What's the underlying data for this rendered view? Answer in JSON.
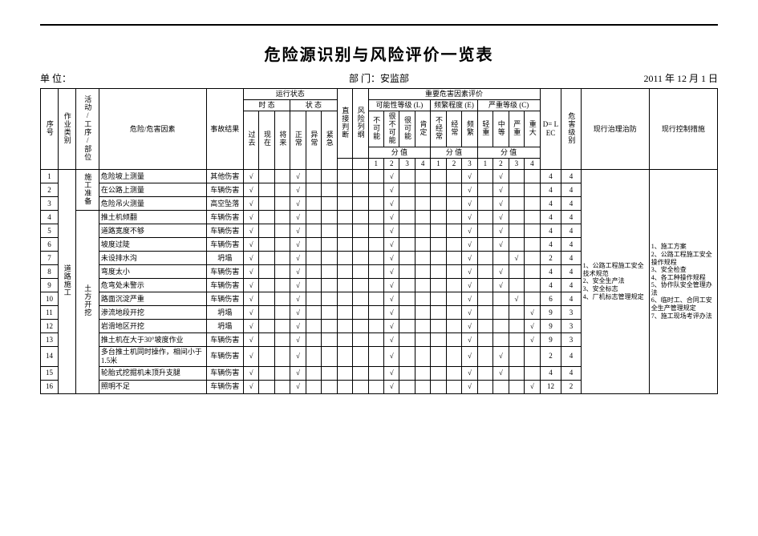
{
  "title": "危险源识别与风险评价一览表",
  "unit_label": "单 位：",
  "dept_label": "部 门：安监部",
  "date_label": "2011 年 12 月 1 日",
  "hdr": {
    "seq": "序号",
    "cat": "作业类别",
    "act": "活动/工序/部位",
    "haz": "危险/危害因素",
    "res": "事故结果",
    "run": "运行状态",
    "time": "时 态",
    "state": "状 态",
    "t_past": "过去",
    "t_now": "现在",
    "t_fut": "将来",
    "s_norm": "正常",
    "s_abn": "异常",
    "s_emg": "紧急",
    "direct": "直接判断",
    "flow": "风险列纲",
    "eval": "重要危害因素评价",
    "L": "可能性等级 (L)",
    "E": "频繁程度 (E)",
    "C": "严重等级 (C)",
    "L1": "不可能",
    "L2": "很不可能",
    "L3": "很可能",
    "L4": "肯定",
    "E1": "不经常",
    "E2": "经常",
    "E3": "频繁",
    "C1": "轻重",
    "C2": "中等",
    "C3": "严重",
    "C4": "重大",
    "score": "分 值",
    "D": "D= LEC",
    "level": "危害级别",
    "admin": "现行治理治防",
    "ctrl": "现行控制措施"
  },
  "cat": "道路施工",
  "act1": "施工准备",
  "act2": "土方开挖",
  "admin_text": "1、公路工程施工安全技术规范\n2、安全生产法\n3、安全标志\n4、厂机标志管理规定",
  "ctrl_text": "1、施工方案\n2、公路工程施工安全操作规程\n3、安全检查\n4、各工种操作规程\n5、协作队安全管理办法\n6、临时工、合同工安全生产管理规定\n7、施工现场考评办法",
  "rows": [
    {
      "seq": "1",
      "haz": "危险坡上测量",
      "res": "其他伤害",
      "t": [
        "√",
        "",
        ""
      ],
      "s": [
        "√",
        "",
        ""
      ],
      "d": "",
      "f": "",
      "L": [
        "",
        "√",
        "",
        ""
      ],
      "E": [
        "",
        "",
        "√"
      ],
      "C": [
        "",
        "√",
        "",
        ""
      ],
      "D": "4",
      "lvl": "4"
    },
    {
      "seq": "2",
      "haz": "在公路上测量",
      "res": "车辆伤害",
      "t": [
        "√",
        "",
        ""
      ],
      "s": [
        "√",
        "",
        ""
      ],
      "d": "",
      "f": "",
      "L": [
        "",
        "√",
        "",
        ""
      ],
      "E": [
        "",
        "",
        "√"
      ],
      "C": [
        "",
        "√",
        "",
        ""
      ],
      "D": "4",
      "lvl": "4"
    },
    {
      "seq": "3",
      "haz": "危险吊火测量",
      "res": "高空坠落",
      "t": [
        "√",
        "",
        ""
      ],
      "s": [
        "√",
        "",
        ""
      ],
      "d": "",
      "f": "",
      "L": [
        "",
        "√",
        "",
        ""
      ],
      "E": [
        "",
        "",
        "√"
      ],
      "C": [
        "",
        "√",
        "",
        ""
      ],
      "D": "4",
      "lvl": "4"
    },
    {
      "seq": "4",
      "haz": "推土机倾翻",
      "res": "车辆伤害",
      "t": [
        "√",
        "",
        ""
      ],
      "s": [
        "√",
        "",
        ""
      ],
      "d": "",
      "f": "",
      "L": [
        "",
        "√",
        "",
        ""
      ],
      "E": [
        "",
        "",
        "√"
      ],
      "C": [
        "",
        "√",
        "",
        ""
      ],
      "D": "4",
      "lvl": "4"
    },
    {
      "seq": "5",
      "haz": "道路宽度不够",
      "res": "车辆伤害",
      "t": [
        "√",
        "",
        ""
      ],
      "s": [
        "√",
        "",
        ""
      ],
      "d": "",
      "f": "",
      "L": [
        "",
        "√",
        "",
        ""
      ],
      "E": [
        "",
        "",
        "√"
      ],
      "C": [
        "",
        "√",
        "",
        ""
      ],
      "D": "4",
      "lvl": "4"
    },
    {
      "seq": "6",
      "haz": "坡度过陡",
      "res": "车辆伤害",
      "t": [
        "√",
        "",
        ""
      ],
      "s": [
        "√",
        "",
        ""
      ],
      "d": "",
      "f": "",
      "L": [
        "",
        "√",
        "",
        ""
      ],
      "E": [
        "",
        "",
        "√"
      ],
      "C": [
        "",
        "√",
        "",
        ""
      ],
      "D": "4",
      "lvl": "4"
    },
    {
      "seq": "7",
      "haz": "未设排水沟",
      "res": "坍塌",
      "t": [
        "√",
        "",
        ""
      ],
      "s": [
        "√",
        "",
        ""
      ],
      "d": "",
      "f": "",
      "L": [
        "",
        "√",
        "",
        ""
      ],
      "E": [
        "",
        "",
        "√"
      ],
      "C": [
        "",
        "",
        "√",
        ""
      ],
      "D": "2",
      "lvl": "4"
    },
    {
      "seq": "8",
      "haz": "弯度太小",
      "res": "车辆伤害",
      "t": [
        "√",
        "",
        ""
      ],
      "s": [
        "√",
        "",
        ""
      ],
      "d": "",
      "f": "",
      "L": [
        "",
        "√",
        "",
        ""
      ],
      "E": [
        "",
        "",
        "√"
      ],
      "C": [
        "",
        "√",
        "",
        ""
      ],
      "D": "4",
      "lvl": "4"
    },
    {
      "seq": "9",
      "haz": "危弯处未警示",
      "res": "车辆伤害",
      "t": [
        "√",
        "",
        ""
      ],
      "s": [
        "√",
        "",
        ""
      ],
      "d": "",
      "f": "",
      "L": [
        "",
        "√",
        "",
        ""
      ],
      "E": [
        "",
        "",
        "√"
      ],
      "C": [
        "",
        "√",
        "",
        ""
      ],
      "D": "4",
      "lvl": "4"
    },
    {
      "seq": "10",
      "haz": "路面沉淀严重",
      "res": "车辆伤害",
      "t": [
        "√",
        "",
        ""
      ],
      "s": [
        "√",
        "",
        ""
      ],
      "d": "",
      "f": "",
      "L": [
        "",
        "√",
        "",
        ""
      ],
      "E": [
        "",
        "",
        "√"
      ],
      "C": [
        "",
        "",
        "√",
        ""
      ],
      "D": "6",
      "lvl": "4"
    },
    {
      "seq": "11",
      "haz": "渗流地段开挖",
      "res": "坍塌",
      "t": [
        "√",
        "",
        ""
      ],
      "s": [
        "√",
        "",
        ""
      ],
      "d": "",
      "f": "",
      "L": [
        "",
        "√",
        "",
        ""
      ],
      "E": [
        "",
        "",
        "√"
      ],
      "C": [
        "",
        "",
        "",
        "√"
      ],
      "D": "9",
      "lvl": "3"
    },
    {
      "seq": "12",
      "haz": "岩滑地区开挖",
      "res": "坍塌",
      "t": [
        "√",
        "",
        ""
      ],
      "s": [
        "√",
        "",
        ""
      ],
      "d": "",
      "f": "",
      "L": [
        "",
        "√",
        "",
        ""
      ],
      "E": [
        "",
        "",
        "√"
      ],
      "C": [
        "",
        "",
        "",
        "√"
      ],
      "D": "9",
      "lvl": "3"
    },
    {
      "seq": "13",
      "haz": "推土机在大于30°坡度作业",
      "res": "车辆伤害",
      "t": [
        "√",
        "",
        ""
      ],
      "s": [
        "√",
        "",
        ""
      ],
      "d": "",
      "f": "",
      "L": [
        "",
        "√",
        "",
        ""
      ],
      "E": [
        "",
        "",
        "√"
      ],
      "C": [
        "",
        "",
        "",
        "√"
      ],
      "D": "9",
      "lvl": "3"
    },
    {
      "seq": "14",
      "haz": "多台推土机同时操作，相间小于1.5米",
      "res": "车辆伤害",
      "t": [
        "√",
        "",
        ""
      ],
      "s": [
        "√",
        "",
        ""
      ],
      "d": "",
      "f": "",
      "L": [
        "",
        "√",
        "",
        ""
      ],
      "E": [
        "",
        "",
        "√"
      ],
      "C": [
        "",
        "√",
        "",
        ""
      ],
      "D": "2",
      "lvl": "4"
    },
    {
      "seq": "15",
      "haz": "轮胎式挖掘机未顶升支腿",
      "res": "车辆伤害",
      "t": [
        "√",
        "",
        ""
      ],
      "s": [
        "√",
        "",
        ""
      ],
      "d": "",
      "f": "",
      "L": [
        "",
        "√",
        "",
        ""
      ],
      "E": [
        "",
        "",
        "√"
      ],
      "C": [
        "",
        "√",
        "",
        ""
      ],
      "D": "4",
      "lvl": "4"
    },
    {
      "seq": "16",
      "haz": "照明不足",
      "res": "车辆伤害",
      "t": [
        "√",
        "",
        ""
      ],
      "s": [
        "√",
        "",
        ""
      ],
      "d": "",
      "f": "",
      "L": [
        "",
        "√",
        "",
        ""
      ],
      "E": [
        "",
        "",
        "√"
      ],
      "C": [
        "",
        "",
        "",
        "√"
      ],
      "D": "12",
      "lvl": "2"
    }
  ]
}
